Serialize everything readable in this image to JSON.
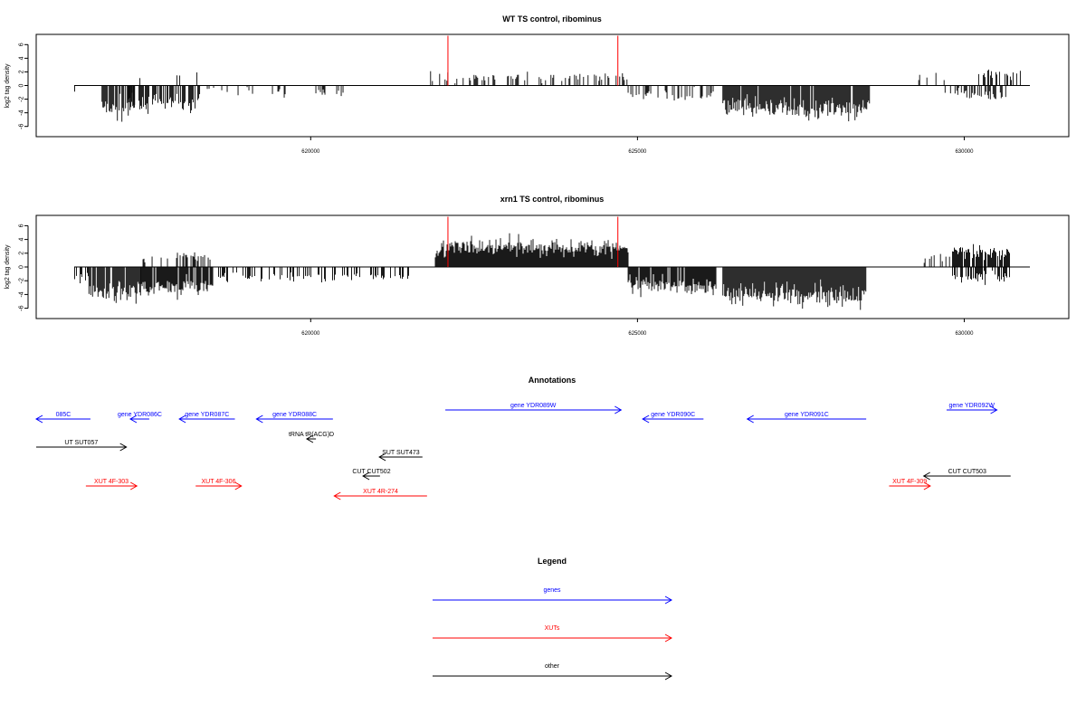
{
  "chart_data": [
    {
      "type": "bar",
      "title": "WT TS control, ribominus",
      "ylabel": "log2 tag density",
      "xlabel": "",
      "xlim": [
        615800,
        631600
      ],
      "ylim": [
        -7.5,
        7.5
      ],
      "yticks": [
        -6,
        -4,
        -2,
        0,
        2,
        4,
        6
      ],
      "xticks": [
        620000,
        625000,
        630000
      ],
      "grid": false,
      "markers": [
        {
          "x": 622100,
          "y": 7.3,
          "color": "#ff0000"
        },
        {
          "x": 624700,
          "y": 7.3,
          "color": "#ff0000"
        }
      ],
      "regions": [
        {
          "from": 616000,
          "to": 616400,
          "mean": -1.0,
          "density": 0.35
        },
        {
          "from": 616800,
          "to": 617300,
          "mean": -3.4,
          "density": 0.85
        },
        {
          "from": 617200,
          "to": 618300,
          "mean": -2.6,
          "density": 0.75
        },
        {
          "from": 617200,
          "to": 618300,
          "mean": 1.8,
          "density": 0.1
        },
        {
          "from": 618300,
          "to": 620500,
          "mean": -0.9,
          "density": 0.12
        },
        {
          "from": 621800,
          "to": 624850,
          "mean": 1.2,
          "density": 0.32
        },
        {
          "from": 624850,
          "to": 626200,
          "mean": -1.4,
          "density": 0.3
        },
        {
          "from": 626300,
          "to": 628550,
          "mean": -3.4,
          "density": 0.92
        },
        {
          "from": 629200,
          "to": 629700,
          "mean": 1.0,
          "density": 0.1
        },
        {
          "from": 629700,
          "to": 630700,
          "mean": -1.3,
          "density": 0.45
        },
        {
          "from": 630200,
          "to": 630900,
          "mean": 1.6,
          "density": 0.45
        }
      ]
    },
    {
      "type": "bar",
      "title": "xrn1 TS control, ribominus",
      "ylabel": "log2 tag density",
      "xlabel": "",
      "xlim": [
        615800,
        631600
      ],
      "ylim": [
        -7.5,
        7.5
      ],
      "yticks": [
        -6,
        -4,
        -2,
        0,
        2,
        4,
        6
      ],
      "xticks": [
        620000,
        625000,
        630000
      ],
      "grid": false,
      "markers": [
        {
          "x": 622100,
          "y": 7.3,
          "color": "#ff0000"
        },
        {
          "x": 624700,
          "y": 7.3,
          "color": "#ff0000"
        }
      ],
      "regions": [
        {
          "from": 616000,
          "to": 616600,
          "mean": -1.4,
          "density": 0.45
        },
        {
          "from": 616600,
          "to": 617400,
          "mean": -3.6,
          "density": 0.95
        },
        {
          "from": 617400,
          "to": 618500,
          "mean": -2.9,
          "density": 0.9
        },
        {
          "from": 617400,
          "to": 618500,
          "mean": 1.4,
          "density": 0.35
        },
        {
          "from": 618500,
          "to": 621500,
          "mean": -1.5,
          "density": 0.3
        },
        {
          "from": 621900,
          "to": 624850,
          "mean": 2.8,
          "density": 1.0
        },
        {
          "from": 624850,
          "to": 626200,
          "mean": -2.8,
          "density": 0.95
        },
        {
          "from": 626300,
          "to": 628500,
          "mean": -4.0,
          "density": 1.0
        },
        {
          "from": 629200,
          "to": 629800,
          "mean": 1.3,
          "density": 0.25
        },
        {
          "from": 629800,
          "to": 630700,
          "mean": 2.2,
          "density": 0.85
        },
        {
          "from": 629800,
          "to": 630700,
          "mean": -1.5,
          "density": 0.5
        }
      ]
    }
  ],
  "annotations": {
    "title": "Annotations",
    "items": [
      {
        "label": "085C",
        "color": "#0000ff",
        "dir": "left",
        "from": 615800,
        "to": 616630,
        "row": 1
      },
      {
        "label": "gene YDR086C",
        "color": "#0000ff",
        "dir": "left",
        "from": 617240,
        "to": 617530,
        "row": 1
      },
      {
        "label": "gene YDR087C",
        "color": "#0000ff",
        "dir": "left",
        "from": 617990,
        "to": 618840,
        "row": 1
      },
      {
        "label": "gene YDR088C",
        "color": "#0000ff",
        "dir": "left",
        "from": 619170,
        "to": 620340,
        "row": 1
      },
      {
        "label": "gene YDR089W",
        "color": "#0000ff",
        "dir": "right",
        "from": 622060,
        "to": 624750,
        "row": 0
      },
      {
        "label": "gene YDR090C",
        "color": "#0000ff",
        "dir": "left",
        "from": 625080,
        "to": 626010,
        "row": 1
      },
      {
        "label": "gene YDR091C",
        "color": "#0000ff",
        "dir": "left",
        "from": 626680,
        "to": 628500,
        "row": 1
      },
      {
        "label": "gene YDR092W",
        "color": "#0000ff",
        "dir": "right",
        "from": 629730,
        "to": 630500,
        "row": 0
      },
      {
        "label": "UT SUT057",
        "color": "#000000",
        "dir": "right",
        "from": 615800,
        "to": 617180,
        "row": 2
      },
      {
        "label": "tRNA tR(ACG)D",
        "color": "#000000",
        "dir": "left",
        "from": 619940,
        "to": 620080,
        "row": 3
      },
      {
        "label": "SUT SUT473",
        "color": "#000000",
        "dir": "left",
        "from": 621050,
        "to": 621710,
        "row": 4
      },
      {
        "label": "CUT CUT502",
        "color": "#000000",
        "dir": "left",
        "from": 620800,
        "to": 621060,
        "row": 5
      },
      {
        "label": "CUT CUT503",
        "color": "#000000",
        "dir": "left",
        "from": 629380,
        "to": 630710,
        "row": 5
      },
      {
        "label": "XUT 4F-303",
        "color": "#ff0000",
        "dir": "right",
        "from": 616560,
        "to": 617340,
        "row": 6
      },
      {
        "label": "XUT 4F-306",
        "color": "#ff0000",
        "dir": "right",
        "from": 618240,
        "to": 618940,
        "row": 6
      },
      {
        "label": "XUT 4R-274",
        "color": "#ff0000",
        "dir": "left",
        "from": 620360,
        "to": 621780,
        "row": 7
      },
      {
        "label": "XUT 4F-309",
        "color": "#ff0000",
        "dir": "right",
        "from": 628850,
        "to": 629480,
        "row": 6
      }
    ]
  },
  "legend": {
    "title": "Legend",
    "items": [
      {
        "label": "genes",
        "color": "#0000ff"
      },
      {
        "label": "XUTs",
        "color": "#ff0000"
      },
      {
        "label": "other",
        "color": "#000000"
      }
    ]
  }
}
